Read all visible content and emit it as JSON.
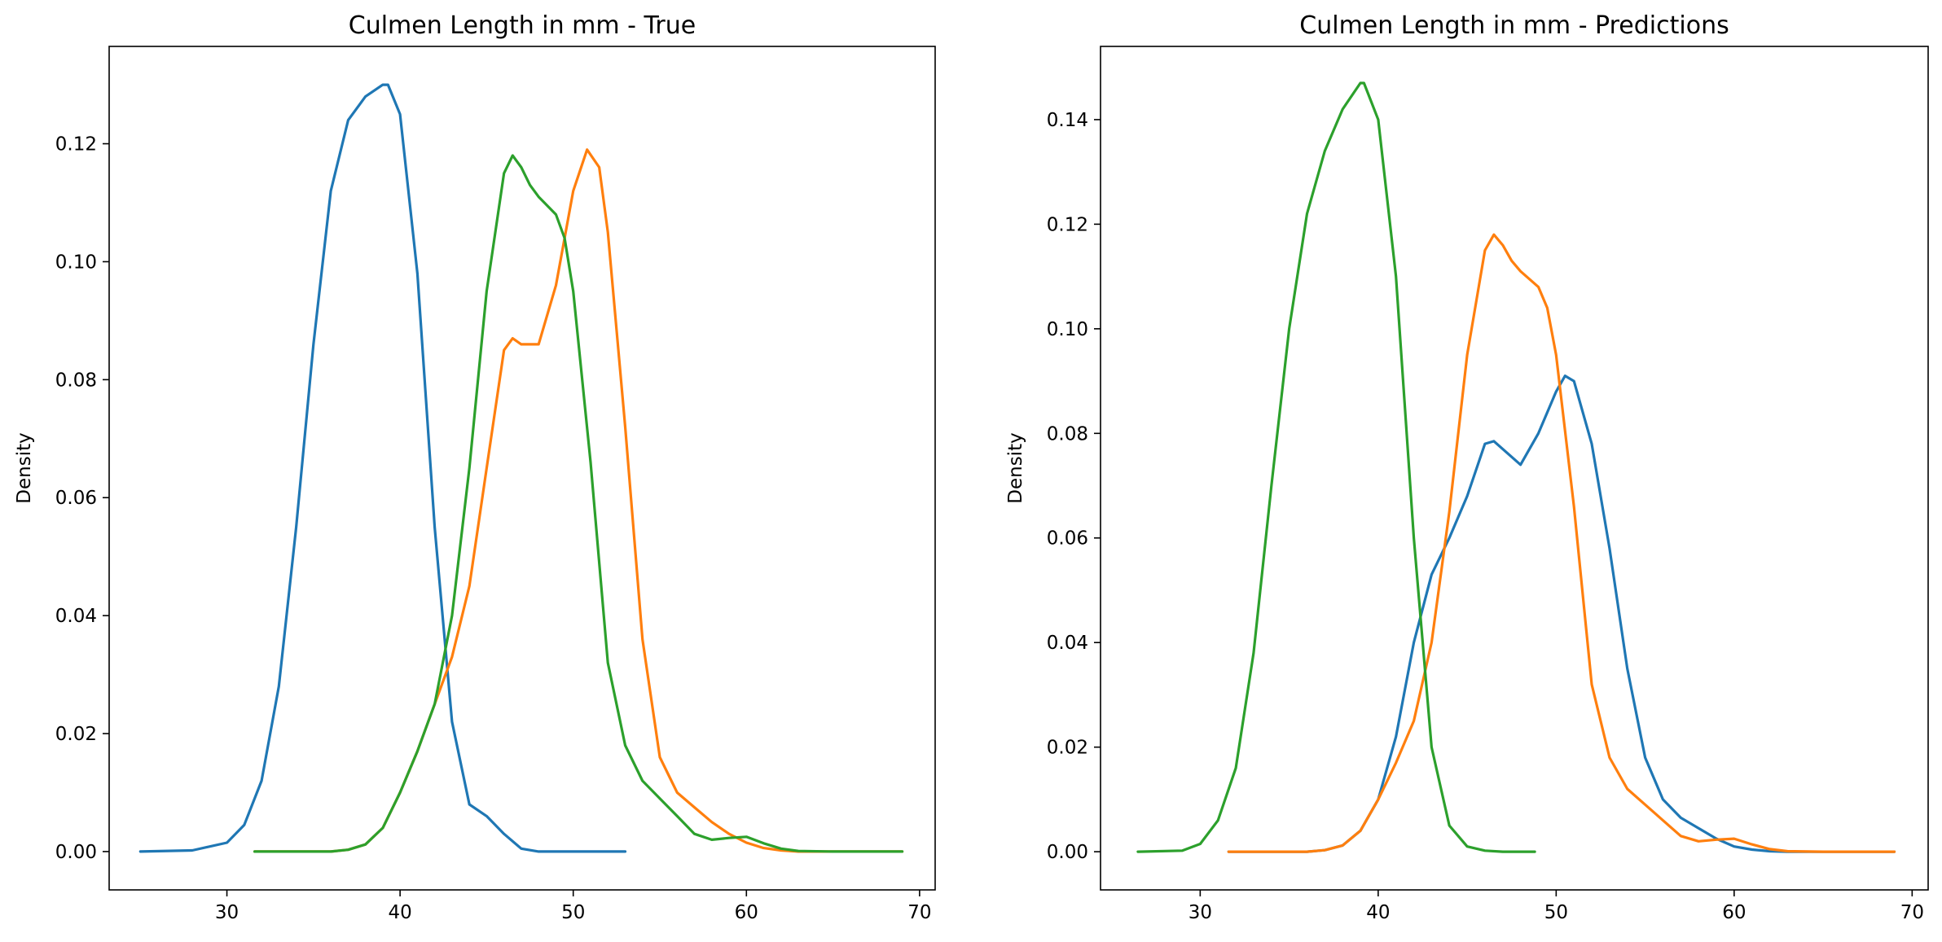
{
  "chart_data": [
    {
      "type": "line",
      "title": "Culmen Length in mm - True",
      "xlabel": "",
      "ylabel": "Density",
      "xlim": [
        23.2,
        70.9
      ],
      "ylim": [
        -0.0065,
        0.1365
      ],
      "xticks": [
        "30",
        "40",
        "50",
        "60",
        "70"
      ],
      "yticks": [
        "0.00",
        "0.02",
        "0.04",
        "0.06",
        "0.08",
        "0.10",
        "0.12"
      ],
      "series": [
        {
          "color": "#1f77b4",
          "x": [
            25.0,
            28,
            30,
            31,
            32,
            33,
            34,
            35,
            36,
            37,
            38,
            39,
            39.3,
            40,
            41,
            42,
            43,
            44,
            45,
            46,
            47,
            48,
            50,
            53.0
          ],
          "y": [
            0.0,
            0.0002,
            0.0015,
            0.0045,
            0.012,
            0.028,
            0.055,
            0.086,
            0.112,
            0.124,
            0.128,
            0.13,
            0.13,
            0.125,
            0.098,
            0.055,
            0.022,
            0.008,
            0.006,
            0.003,
            0.0005,
            0.0,
            0.0,
            0.0
          ]
        },
        {
          "color": "#ff7f0e",
          "x": [
            31.6,
            36,
            37,
            38,
            39,
            40,
            41,
            42,
            43,
            44,
            45,
            46,
            46.5,
            47,
            48,
            49,
            50,
            50.8,
            51.5,
            52,
            53,
            54,
            55,
            56,
            57,
            58,
            59,
            60,
            61,
            62,
            63,
            65,
            69.0
          ],
          "y": [
            0.0,
            0.0,
            0.0003,
            0.0012,
            0.004,
            0.01,
            0.017,
            0.025,
            0.033,
            0.045,
            0.065,
            0.085,
            0.087,
            0.086,
            0.086,
            0.096,
            0.112,
            0.119,
            0.116,
            0.105,
            0.072,
            0.036,
            0.016,
            0.01,
            0.0075,
            0.005,
            0.003,
            0.0015,
            0.0006,
            0.0002,
            0.0,
            0.0,
            0.0
          ]
        },
        {
          "color": "#2ca02c",
          "x": [
            31.6,
            36,
            37,
            38,
            39,
            40,
            41,
            42,
            43,
            44,
            45,
            46,
            46.5,
            47,
            47.5,
            48,
            49,
            49.5,
            50,
            51,
            52,
            53,
            54,
            55,
            56,
            57,
            58,
            59,
            60,
            61,
            62,
            63,
            65,
            69.0
          ],
          "y": [
            0.0,
            0.0,
            0.0003,
            0.0012,
            0.004,
            0.01,
            0.017,
            0.025,
            0.04,
            0.065,
            0.095,
            0.115,
            0.118,
            0.116,
            0.113,
            0.111,
            0.108,
            0.104,
            0.095,
            0.066,
            0.032,
            0.018,
            0.012,
            0.009,
            0.006,
            0.003,
            0.002,
            0.0023,
            0.0025,
            0.0014,
            0.0005,
            0.0001,
            0.0,
            0.0
          ]
        }
      ]
    },
    {
      "type": "line",
      "title": "Culmen Length in mm - Predictions",
      "xlabel": "",
      "ylabel": "Density",
      "xlim": [
        24.4,
        70.9
      ],
      "ylim": [
        -0.0073,
        0.154
      ],
      "xticks": [
        "30",
        "40",
        "50",
        "60",
        "70"
      ],
      "yticks": [
        "0.00",
        "0.02",
        "0.04",
        "0.06",
        "0.08",
        "0.10",
        "0.12",
        "0.14"
      ],
      "series": [
        {
          "color": "#1f77b4",
          "x": [
            31.6,
            36,
            37,
            38,
            39,
            40,
            41,
            42,
            43,
            44,
            45,
            46,
            46.5,
            47,
            48,
            49,
            50,
            50.5,
            51,
            52,
            53,
            54,
            55,
            56,
            57,
            58,
            59,
            60,
            61,
            62,
            63,
            65,
            69.0
          ],
          "y": [
            0.0,
            0.0,
            0.0003,
            0.0012,
            0.004,
            0.01,
            0.022,
            0.04,
            0.053,
            0.06,
            0.068,
            0.078,
            0.0785,
            0.077,
            0.074,
            0.08,
            0.088,
            0.091,
            0.09,
            0.078,
            0.058,
            0.035,
            0.018,
            0.01,
            0.0065,
            0.0045,
            0.0025,
            0.001,
            0.0004,
            0.0001,
            0.0,
            0.0,
            0.0
          ]
        },
        {
          "color": "#ff7f0e",
          "x": [
            31.6,
            36,
            37,
            38,
            39,
            40,
            41,
            42,
            43,
            44,
            45,
            46,
            46.5,
            47,
            47.5,
            48,
            49,
            49.5,
            50,
            51,
            52,
            53,
            54,
            55,
            56,
            57,
            58,
            59,
            60,
            61,
            62,
            63,
            65,
            69.0
          ],
          "y": [
            0.0,
            0.0,
            0.0003,
            0.0012,
            0.004,
            0.01,
            0.017,
            0.025,
            0.04,
            0.065,
            0.095,
            0.115,
            0.118,
            0.116,
            0.113,
            0.111,
            0.108,
            0.104,
            0.095,
            0.066,
            0.032,
            0.018,
            0.012,
            0.009,
            0.006,
            0.003,
            0.002,
            0.0023,
            0.0025,
            0.0014,
            0.0005,
            0.0001,
            0.0,
            0.0
          ]
        },
        {
          "color": "#2ca02c",
          "x": [
            26.5,
            29,
            30,
            31,
            32,
            33,
            34,
            35,
            36,
            37,
            38,
            39,
            39.2,
            40,
            41,
            42,
            43,
            44,
            45,
            46,
            47,
            48,
            48.8
          ],
          "y": [
            0.0,
            0.0002,
            0.0015,
            0.006,
            0.016,
            0.038,
            0.07,
            0.1,
            0.122,
            0.134,
            0.142,
            0.147,
            0.147,
            0.14,
            0.11,
            0.06,
            0.02,
            0.005,
            0.001,
            0.0002,
            0.0,
            0.0,
            0.0
          ]
        }
      ]
    }
  ]
}
